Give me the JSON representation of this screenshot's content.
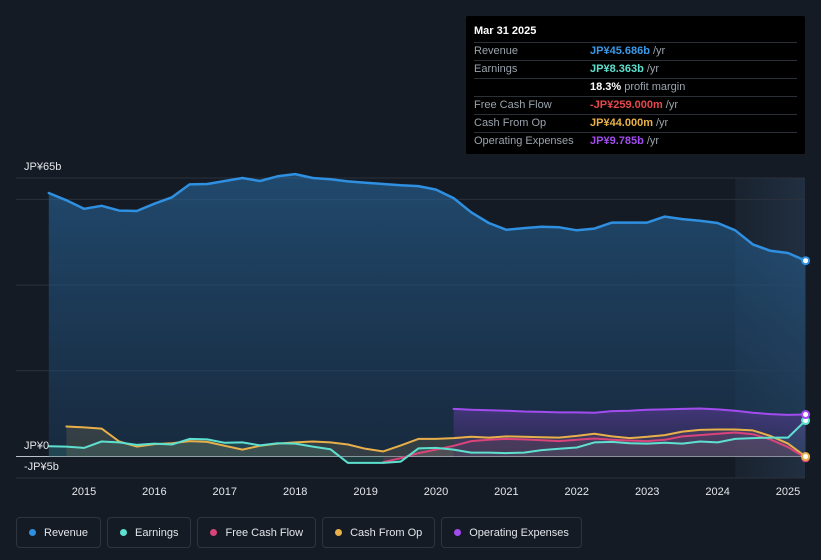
{
  "tooltip": {
    "date": "Mar 31 2025",
    "rows": [
      {
        "label": "Revenue",
        "value": "JP¥45.686b",
        "unit": "/yr",
        "color": "#3a9ae8"
      },
      {
        "label": "Earnings",
        "value": "JP¥8.363b",
        "unit": "/yr",
        "color": "#5ee0cf"
      },
      {
        "label": "",
        "value": "18.3%",
        "unit": "profit margin",
        "color": "#ffffff"
      },
      {
        "label": "Free Cash Flow",
        "value": "-JP¥259.000m",
        "unit": "/yr",
        "color": "#e5484d"
      },
      {
        "label": "Cash From Op",
        "value": "JP¥44.000m",
        "unit": "/yr",
        "color": "#e8b04a"
      },
      {
        "label": "Operating Expenses",
        "value": "JP¥9.785b",
        "unit": "/yr",
        "color": "#a24cf0"
      }
    ]
  },
  "legend": [
    {
      "label": "Revenue",
      "color": "#2f8fe0"
    },
    {
      "label": "Earnings",
      "color": "#5ee0cf"
    },
    {
      "label": "Free Cash Flow",
      "color": "#d9457a"
    },
    {
      "label": "Cash From Op",
      "color": "#e8b04a"
    },
    {
      "label": "Operating Expenses",
      "color": "#a24cf0"
    }
  ],
  "chart_data": {
    "type": "area",
    "title": "",
    "xlabel": "",
    "ylabel": "",
    "ylim": [
      -5,
      65
    ],
    "y_tick_labels": [
      "JP¥65b",
      "JP¥0",
      "-JP¥5b"
    ],
    "x_tick_labels": [
      "2015",
      "2016",
      "2017",
      "2018",
      "2019",
      "2020",
      "2021",
      "2022",
      "2023",
      "2024",
      "2025"
    ],
    "x_range": [
      2014.3,
      2025.5
    ],
    "forecast_start": 2024.25,
    "series": [
      {
        "name": "Revenue",
        "color": "#2f8fe0",
        "x": [
          2014.5,
          2014.75,
          2015.0,
          2015.25,
          2015.5,
          2015.75,
          2016.0,
          2016.25,
          2016.5,
          2016.75,
          2017.0,
          2017.25,
          2017.5,
          2017.75,
          2018.0,
          2018.25,
          2018.5,
          2018.75,
          2019.0,
          2019.25,
          2019.5,
          2019.75,
          2020.0,
          2020.25,
          2020.5,
          2020.75,
          2021.0,
          2021.25,
          2021.5,
          2021.75,
          2022.0,
          2022.25,
          2022.5,
          2022.75,
          2023.0,
          2023.25,
          2023.5,
          2023.75,
          2024.0,
          2024.25,
          2024.5,
          2024.75,
          2025.0,
          2025.25
        ],
        "values": [
          61.5,
          59.8,
          57.8,
          58.5,
          57.4,
          57.3,
          59.0,
          60.5,
          63.5,
          63.6,
          64.3,
          65.0,
          64.3,
          65.4,
          65.9,
          65.0,
          64.7,
          64.2,
          63.9,
          63.6,
          63.3,
          63.1,
          62.3,
          60.3,
          57.0,
          54.5,
          52.9,
          53.3,
          53.6,
          53.5,
          52.8,
          53.2,
          54.6,
          54.6,
          54.6,
          56.0,
          55.4,
          55.0,
          54.5,
          52.8,
          49.5,
          48.0,
          47.5,
          45.7
        ]
      },
      {
        "name": "Earnings",
        "color": "#5ee0cf",
        "x": [
          2014.5,
          2014.75,
          2015.0,
          2015.25,
          2015.5,
          2015.75,
          2016.0,
          2016.25,
          2016.5,
          2016.75,
          2017.0,
          2017.25,
          2017.5,
          2017.75,
          2018.0,
          2018.25,
          2018.5,
          2018.75,
          2019.0,
          2019.25,
          2019.5,
          2019.75,
          2020.0,
          2020.25,
          2020.5,
          2020.75,
          2021.0,
          2021.25,
          2021.5,
          2021.75,
          2022.0,
          2022.25,
          2022.5,
          2022.75,
          2023.0,
          2023.25,
          2023.5,
          2023.75,
          2024.0,
          2024.25,
          2024.5,
          2024.75,
          2025.0,
          2025.25
        ],
        "values": [
          2.4,
          2.3,
          2.0,
          3.5,
          3.3,
          2.7,
          3.0,
          2.8,
          4.1,
          4.0,
          3.2,
          3.3,
          2.6,
          3.1,
          3.0,
          2.3,
          1.7,
          -1.5,
          -1.5,
          -1.5,
          -1.2,
          1.9,
          2.0,
          1.6,
          0.9,
          0.9,
          0.8,
          0.9,
          1.5,
          1.8,
          2.1,
          3.3,
          3.4,
          3.1,
          3.0,
          3.2,
          3.0,
          3.5,
          3.3,
          4.1,
          4.3,
          4.4,
          4.4,
          8.4
        ]
      },
      {
        "name": "Free Cash Flow",
        "color": "#d9457a",
        "x": [
          2019.25,
          2019.5,
          2019.75,
          2020.0,
          2020.25,
          2020.5,
          2020.75,
          2021.0,
          2021.25,
          2021.5,
          2021.75,
          2022.0,
          2022.25,
          2022.5,
          2022.75,
          2023.0,
          2023.25,
          2023.5,
          2023.75,
          2024.0,
          2024.25,
          2024.5,
          2024.75,
          2025.0,
          2025.25
        ],
        "values": [
          -1.3,
          -0.4,
          0.8,
          1.6,
          2.5,
          3.6,
          3.9,
          4.1,
          4.0,
          3.8,
          3.6,
          3.9,
          4.2,
          3.9,
          3.7,
          3.6,
          3.9,
          4.7,
          5.0,
          5.3,
          5.6,
          5.2,
          4.0,
          2.2,
          -0.3
        ]
      },
      {
        "name": "Cash From Op",
        "color": "#e8b04a",
        "x": [
          2014.75,
          2015.0,
          2015.25,
          2015.5,
          2015.75,
          2016.0,
          2016.25,
          2016.5,
          2016.75,
          2017.0,
          2017.25,
          2017.5,
          2017.75,
          2018.0,
          2018.25,
          2018.5,
          2018.75,
          2019.0,
          2019.25,
          2019.5,
          2019.75,
          2020.0,
          2020.25,
          2020.5,
          2020.75,
          2021.0,
          2021.25,
          2021.5,
          2021.75,
          2022.0,
          2022.25,
          2022.5,
          2022.75,
          2023.0,
          2023.25,
          2023.5,
          2023.75,
          2024.0,
          2024.25,
          2024.5,
          2024.75,
          2025.0,
          2025.25
        ],
        "values": [
          7.0,
          6.8,
          6.5,
          3.5,
          2.3,
          2.9,
          3.1,
          3.6,
          3.4,
          2.5,
          1.6,
          2.5,
          3.0,
          3.3,
          3.5,
          3.3,
          2.8,
          1.8,
          1.2,
          2.6,
          4.1,
          4.1,
          4.3,
          4.6,
          4.4,
          4.7,
          4.6,
          4.5,
          4.4,
          4.8,
          5.3,
          4.7,
          4.3,
          4.6,
          5.0,
          5.8,
          6.2,
          6.3,
          6.3,
          6.1,
          4.8,
          3.0,
          0.0
        ]
      },
      {
        "name": "Operating Expenses",
        "color": "#a24cf0",
        "x": [
          2020.25,
          2020.5,
          2020.75,
          2021.0,
          2021.25,
          2021.5,
          2021.75,
          2022.0,
          2022.25,
          2022.5,
          2022.75,
          2023.0,
          2023.25,
          2023.5,
          2023.75,
          2024.0,
          2024.25,
          2024.5,
          2024.75,
          2025.0,
          2025.25
        ],
        "values": [
          11.1,
          10.9,
          10.8,
          10.7,
          10.5,
          10.4,
          10.3,
          10.3,
          10.2,
          10.6,
          10.7,
          10.9,
          11.0,
          11.1,
          11.2,
          11.0,
          10.7,
          10.2,
          9.9,
          9.7,
          9.8
        ]
      }
    ]
  }
}
